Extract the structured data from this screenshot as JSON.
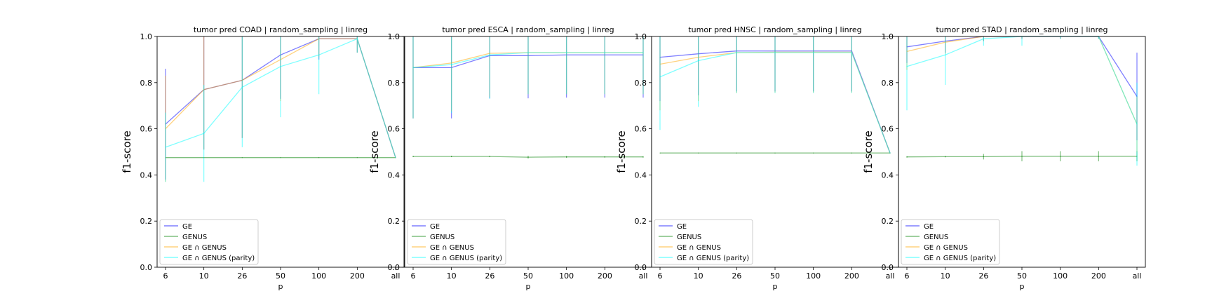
{
  "chart_data": [
    {
      "type": "line",
      "title": "tumor pred COAD | random_sampling | linreg",
      "xlabel": "p",
      "ylabel": "f1-score",
      "categories": [
        "6",
        "10",
        "26",
        "50",
        "100",
        "200",
        "all"
      ],
      "ylim": [
        0.0,
        1.0
      ],
      "yticks": [
        "0.0",
        "0.2",
        "0.4",
        "0.6",
        "0.8",
        "1.0"
      ],
      "grid": false,
      "legend": "lower-left",
      "series": [
        {
          "name": "GE",
          "color": "#0000ff",
          "values": [
            0.62,
            0.77,
            0.81,
            0.92,
            0.99,
            0.99,
            0.475
          ],
          "err": [
            0.24,
            0.26,
            0.25,
            0.19,
            0.09,
            0.06,
            0.0
          ]
        },
        {
          "name": "GENUS",
          "color": "#008000",
          "values": [
            0.475,
            0.475,
            0.475,
            0.475,
            0.475,
            0.475,
            0.475
          ],
          "err": [
            0.0,
            0.0,
            0.0,
            0.0,
            0.0,
            0.0,
            0.0
          ]
        },
        {
          "name": "GE ∩ GENUS",
          "color": "#ffa500",
          "values": [
            0.6,
            0.77,
            0.81,
            0.9,
            0.99,
            0.99,
            0.475
          ],
          "err": [
            0.23,
            0.26,
            0.25,
            0.18,
            0.08,
            0.06,
            0.0
          ]
        },
        {
          "name": "GE ∩ GENUS (parity)",
          "color": "#00ffff",
          "values": [
            0.52,
            0.58,
            0.78,
            0.87,
            0.92,
            0.99,
            0.475
          ],
          "err": [
            0.15,
            0.21,
            0.26,
            0.22,
            0.17,
            0.06,
            0.0
          ]
        }
      ]
    },
    {
      "type": "line",
      "title": "tumor pred ESCA | random_sampling | linreg",
      "xlabel": "p",
      "ylabel": "f1-score",
      "categories": [
        "6",
        "10",
        "26",
        "50",
        "100",
        "200",
        "all"
      ],
      "ylim": [
        0.0,
        1.0
      ],
      "yticks": [
        "0.0",
        "0.2",
        "0.4",
        "0.6",
        "0.8",
        "1.0"
      ],
      "grid": false,
      "legend": "lower-left",
      "series": [
        {
          "name": "GE",
          "color": "#0000ff",
          "values": [
            0.865,
            0.865,
            0.917,
            0.917,
            0.92,
            0.92,
            0.92
          ],
          "err": [
            0.22,
            0.22,
            0.185,
            0.185,
            0.185,
            0.185,
            0.185
          ]
        },
        {
          "name": "GENUS",
          "color": "#008000",
          "values": [
            0.48,
            0.48,
            0.48,
            0.477,
            0.478,
            0.478,
            0.478
          ],
          "err": [
            0.003,
            0.003,
            0.003,
            0.006,
            0.004,
            0.003,
            0.003
          ]
        },
        {
          "name": "GE ∩ GENUS",
          "color": "#ffa500",
          "values": [
            0.865,
            0.885,
            0.927,
            0.93,
            0.93,
            0.93,
            0.93
          ],
          "err": [
            0.22,
            0.21,
            0.19,
            0.18,
            0.18,
            0.18,
            0.18
          ]
        },
        {
          "name": "GE ∩ GENUS (parity)",
          "color": "#00ffff",
          "values": [
            0.865,
            0.878,
            0.92,
            0.93,
            0.93,
            0.93,
            0.93
          ],
          "err": [
            0.22,
            0.21,
            0.19,
            0.18,
            0.18,
            0.18,
            0.18
          ]
        }
      ]
    },
    {
      "type": "line",
      "title": "tumor pred HNSC | random_sampling | linreg",
      "xlabel": "p",
      "ylabel": "f1-score",
      "categories": [
        "6",
        "10",
        "26",
        "50",
        "100",
        "200",
        "all"
      ],
      "ylim": [
        0.0,
        1.0
      ],
      "yticks": [
        "0.0",
        "0.2",
        "0.4",
        "0.6",
        "0.8",
        "1.0"
      ],
      "grid": false,
      "legend": "lower-left",
      "series": [
        {
          "name": "GE",
          "color": "#0000ff",
          "values": [
            0.91,
            0.925,
            0.937,
            0.937,
            0.937,
            0.937,
            0.495
          ],
          "err": [
            0.19,
            0.18,
            0.175,
            0.175,
            0.175,
            0.175,
            0.0
          ]
        },
        {
          "name": "GENUS",
          "color": "#008000",
          "values": [
            0.495,
            0.495,
            0.495,
            0.495,
            0.495,
            0.495,
            0.495
          ],
          "err": [
            0.0,
            0.0,
            0.0,
            0.0,
            0.0,
            0.0,
            0.0
          ]
        },
        {
          "name": "GE ∩ GENUS",
          "color": "#ffa500",
          "values": [
            0.88,
            0.91,
            0.93,
            0.932,
            0.932,
            0.932,
            0.495
          ],
          "err": [
            0.2,
            0.19,
            0.175,
            0.175,
            0.175,
            0.175,
            0.0
          ]
        },
        {
          "name": "GE ∩ GENUS (parity)",
          "color": "#00ffff",
          "values": [
            0.825,
            0.895,
            0.93,
            0.93,
            0.93,
            0.93,
            0.495
          ],
          "err": [
            0.23,
            0.2,
            0.175,
            0.175,
            0.175,
            0.175,
            0.0
          ]
        }
      ]
    },
    {
      "type": "line",
      "title": "tumor pred STAD | random_sampling | linreg",
      "xlabel": "p",
      "ylabel": "f1-score",
      "categories": [
        "6",
        "10",
        "26",
        "50",
        "100",
        "200",
        "all"
      ],
      "ylim": [
        0.0,
        1.0
      ],
      "yticks": [
        "0.0",
        "0.2",
        "0.4",
        "0.6",
        "0.8",
        "1.0"
      ],
      "grid": false,
      "legend": "lower-left",
      "series": [
        {
          "name": "GE",
          "color": "#0000ff",
          "values": [
            0.955,
            0.98,
            1.0,
            1.0,
            1.0,
            1.0,
            0.74
          ],
          "err": [
            0.07,
            0.05,
            0.02,
            0.01,
            0.01,
            0.01,
            0.19
          ]
        },
        {
          "name": "GENUS",
          "color": "#008000",
          "values": [
            0.478,
            0.479,
            0.479,
            0.481,
            0.481,
            0.481,
            0.481
          ],
          "err": [
            0.003,
            0.003,
            0.012,
            0.022,
            0.022,
            0.022,
            0.022
          ]
        },
        {
          "name": "GE ∩ GENUS",
          "color": "#ffa500",
          "values": [
            0.935,
            0.975,
            1.0,
            1.0,
            1.0,
            1.0,
            0.62
          ],
          "err": [
            0.08,
            0.05,
            0.02,
            0.01,
            0.01,
            0.01,
            0.12
          ]
        },
        {
          "name": "GE ∩ GENUS (parity)",
          "color": "#00ffff",
          "values": [
            0.87,
            0.92,
            0.99,
            1.0,
            1.0,
            1.0,
            0.62
          ],
          "err": [
            0.19,
            0.13,
            0.03,
            0.04,
            0.01,
            0.01,
            0.18
          ]
        }
      ]
    }
  ]
}
